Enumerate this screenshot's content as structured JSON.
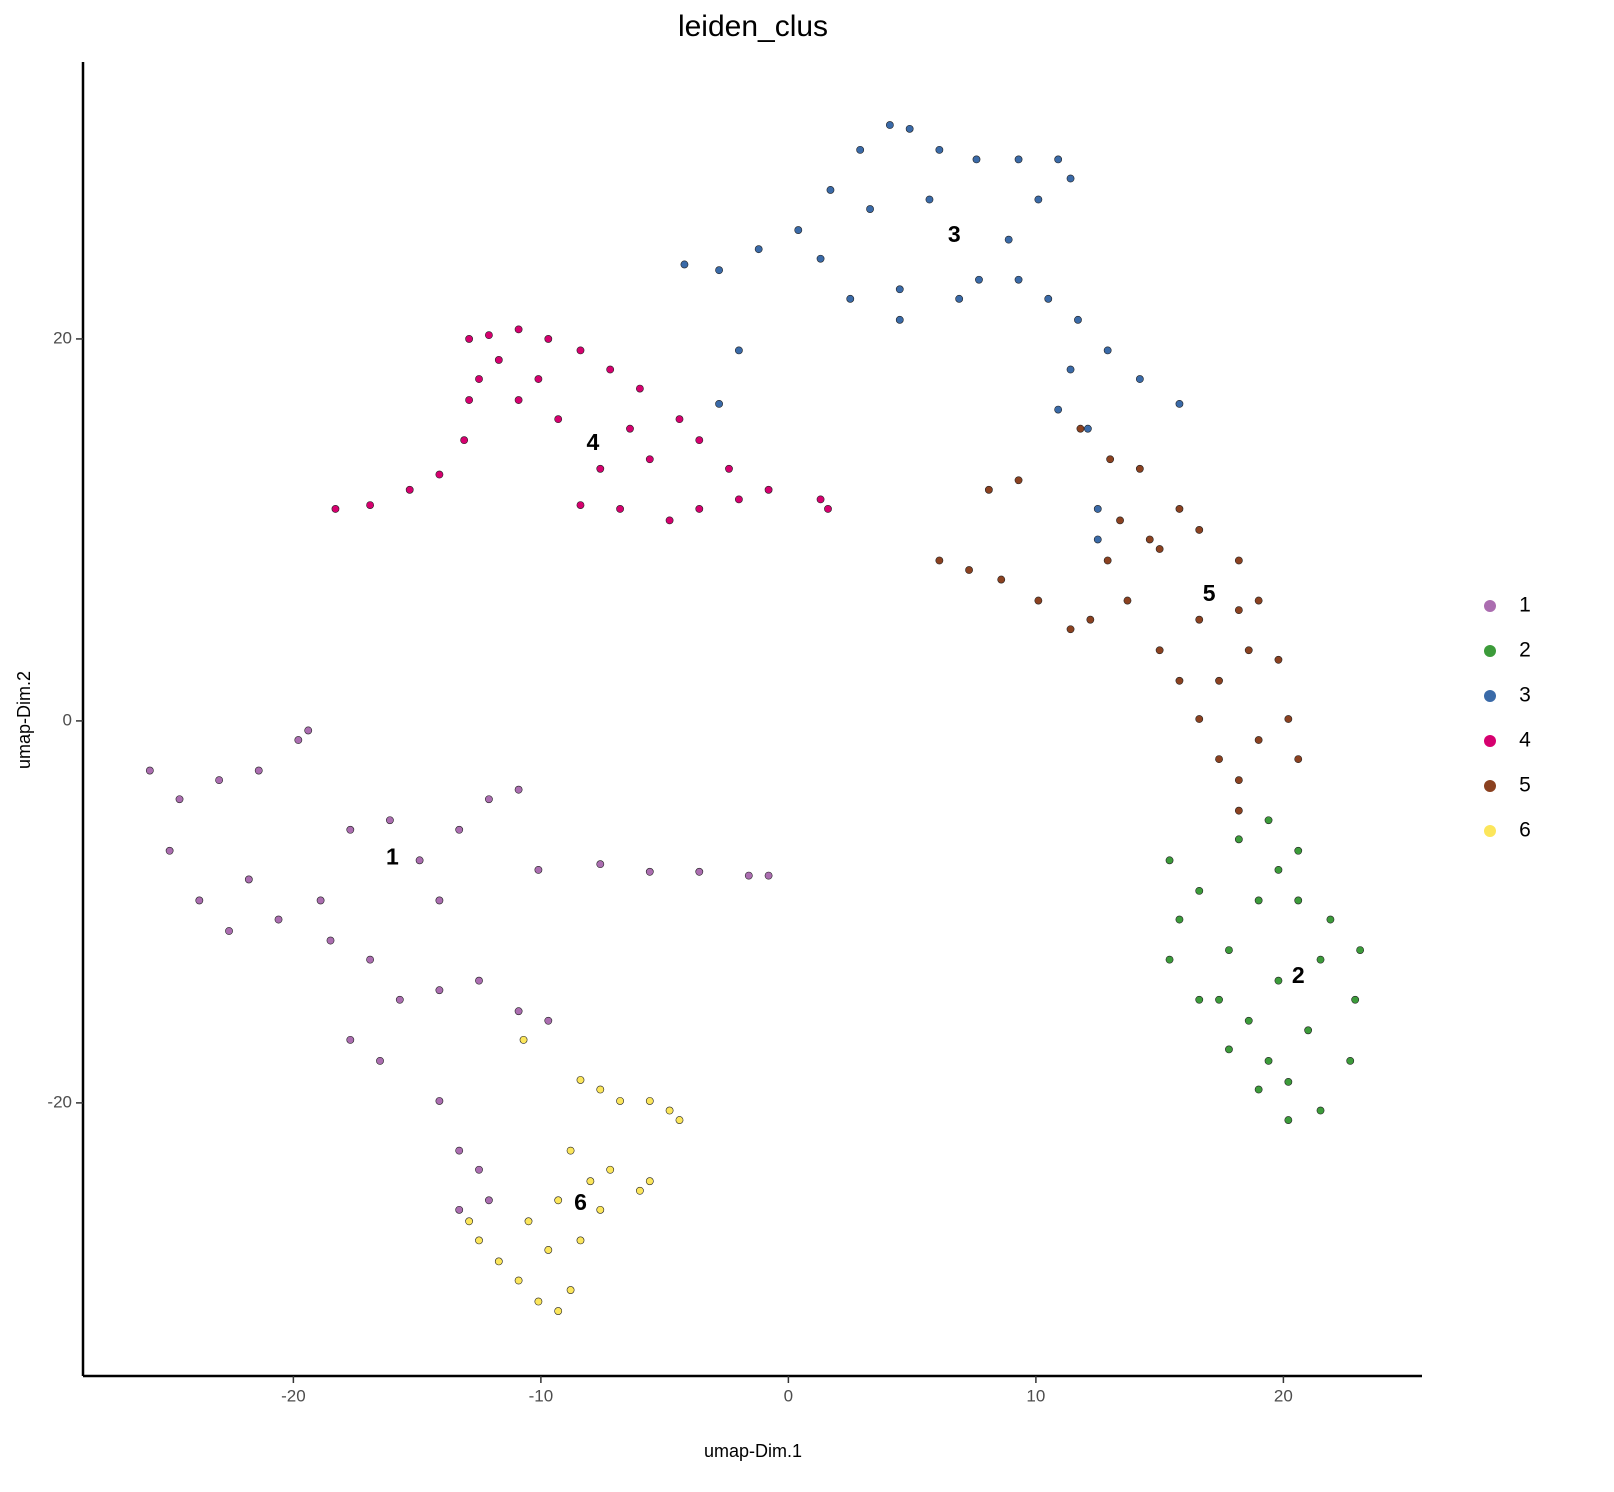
{
  "chart_data": {
    "type": "scatter",
    "title": "leiden_clus",
    "x_label": "umap-Dim.1",
    "y_label": "umap-Dim.2",
    "xlim": [
      -28.5,
      25.6
    ],
    "ylim": [
      -34.3,
      34.5
    ],
    "xticks": [
      -20,
      -10,
      0,
      10,
      20
    ],
    "yticks": [
      -20,
      0,
      20
    ],
    "grid": false,
    "legend": "right",
    "series": [
      {
        "name": "1",
        "color": "#ab6db0",
        "x": [
          -25.8,
          -24.6,
          -23.0,
          -21.4,
          -19.8,
          -19.4,
          -25.0,
          -23.8,
          -22.6,
          -20.6,
          -18.9,
          -17.7,
          -16.1,
          -14.9,
          -14.1,
          -13.3,
          -12.1,
          -10.9,
          -10.1,
          -7.6,
          -5.6,
          -3.6,
          -1.6,
          -0.8,
          -16.9,
          -15.7,
          -17.7,
          -16.5,
          -14.1,
          -12.5,
          -10.9,
          -9.7,
          -14.1,
          -13.3,
          -12.5,
          -12.1,
          -13.3,
          -21.8,
          -18.5
        ],
        "y": [
          -2.6,
          -4.1,
          -3.1,
          -2.6,
          -1.0,
          -0.5,
          -6.8,
          -9.4,
          -11.0,
          -10.4,
          -9.4,
          -5.7,
          -5.2,
          -7.3,
          -9.4,
          -5.7,
          -4.1,
          -3.6,
          -7.8,
          -7.5,
          -7.9,
          -7.9,
          -8.1,
          -8.1,
          -12.5,
          -14.6,
          -16.7,
          -17.8,
          -14.1,
          -13.6,
          -15.2,
          -15.7,
          -19.9,
          -22.5,
          -23.5,
          -25.1,
          -25.6,
          -8.3,
          -11.5
        ]
      },
      {
        "name": "2",
        "color": "#3c9b3a",
        "x": [
          19.4,
          20.6,
          18.2,
          15.4,
          15.8,
          15.4,
          16.6,
          17.8,
          19.0,
          20.2,
          21.5,
          22.7,
          22.9,
          23.1,
          21.9,
          20.6,
          19.0,
          17.8,
          19.8,
          21.0,
          19.4,
          18.6,
          17.4,
          21.5,
          19.8,
          16.6,
          20.2
        ],
        "y": [
          -5.2,
          -6.8,
          -6.2,
          -7.3,
          -10.4,
          -12.5,
          -14.6,
          -17.2,
          -19.3,
          -20.9,
          -20.4,
          -17.8,
          -14.6,
          -12.0,
          -10.4,
          -9.4,
          -9.4,
          -12.0,
          -13.6,
          -16.2,
          -17.8,
          -15.7,
          -14.6,
          -12.5,
          -7.8,
          -8.9,
          -18.9
        ]
      },
      {
        "name": "3",
        "color": "#3a6aa8",
        "x": [
          -4.2,
          -2.8,
          -1.2,
          0.4,
          1.7,
          2.9,
          4.1,
          4.9,
          6.1,
          7.6,
          9.3,
          10.9,
          11.4,
          10.1,
          8.9,
          9.3,
          10.5,
          11.7,
          12.9,
          14.2,
          15.8,
          11.4,
          10.9,
          12.1,
          6.9,
          4.5,
          2.5,
          4.5,
          1.3,
          3.3,
          5.7,
          7.7,
          12.5,
          12.5,
          -2.0,
          -2.8
        ],
        "y": [
          23.9,
          23.6,
          24.7,
          25.7,
          27.8,
          29.9,
          31.2,
          31.0,
          29.9,
          29.4,
          29.4,
          29.4,
          28.4,
          27.3,
          25.2,
          23.1,
          22.1,
          21.0,
          19.4,
          17.9,
          16.6,
          18.4,
          16.3,
          15.3,
          22.1,
          22.6,
          22.1,
          21.0,
          24.2,
          26.8,
          27.3,
          23.1,
          11.1,
          9.5,
          19.4,
          16.6
        ]
      },
      {
        "name": "4",
        "color": "#d6006f",
        "x": [
          -18.3,
          -16.9,
          -15.3,
          -14.1,
          -13.1,
          -12.9,
          -12.9,
          -12.1,
          -10.9,
          -9.7,
          -8.4,
          -7.2,
          -6.0,
          -4.4,
          -3.6,
          -2.4,
          -0.8,
          1.3,
          -3.6,
          -4.8,
          -6.8,
          -8.4,
          -7.6,
          -6.4,
          -9.3,
          -10.9,
          -12.5,
          -11.7,
          -10.1,
          -5.6,
          -2.0,
          1.6
        ],
        "y": [
          11.1,
          11.3,
          12.1,
          12.9,
          14.7,
          16.8,
          20.0,
          20.2,
          20.5,
          20.0,
          19.4,
          18.4,
          17.4,
          15.8,
          14.7,
          13.2,
          12.1,
          11.6,
          11.1,
          10.5,
          11.1,
          11.3,
          13.2,
          15.3,
          15.8,
          16.8,
          17.9,
          18.9,
          17.9,
          13.7,
          11.6,
          11.1
        ]
      },
      {
        "name": "5",
        "color": "#8b4120",
        "x": [
          6.1,
          7.3,
          8.6,
          10.1,
          11.4,
          12.2,
          8.1,
          9.3,
          11.8,
          13.0,
          14.2,
          15.8,
          16.6,
          18.2,
          19.0,
          19.8,
          20.2,
          20.6,
          19.0,
          18.2,
          18.2,
          17.4,
          16.6,
          15.8,
          15.0,
          13.7,
          12.9,
          13.4,
          15.0,
          16.6,
          17.4,
          18.6,
          14.6,
          18.2
        ],
        "y": [
          8.4,
          7.9,
          7.4,
          6.3,
          4.8,
          5.3,
          12.1,
          12.6,
          15.3,
          13.7,
          13.2,
          11.1,
          10.0,
          8.4,
          6.3,
          3.2,
          0.1,
          -2.0,
          -1.0,
          -3.1,
          -4.7,
          -2.0,
          0.1,
          2.1,
          3.7,
          6.3,
          8.4,
          10.5,
          9.0,
          5.3,
          2.1,
          3.7,
          9.5,
          5.8
        ]
      },
      {
        "name": "6",
        "color": "#fce65b",
        "x": [
          -12.9,
          -12.5,
          -11.7,
          -10.9,
          -10.1,
          -9.3,
          -8.8,
          -9.7,
          -9.3,
          -8.0,
          -7.2,
          -6.0,
          -5.6,
          -7.6,
          -6.8,
          -5.6,
          -4.8,
          -4.4,
          -8.4,
          -7.6,
          -8.8,
          -10.5,
          -8.4,
          -10.7
        ],
        "y": [
          -26.2,
          -27.2,
          -28.3,
          -29.3,
          -30.4,
          -30.9,
          -29.8,
          -27.7,
          -25.1,
          -24.1,
          -23.5,
          -24.6,
          -24.1,
          -25.6,
          -19.9,
          -19.9,
          -20.4,
          -20.9,
          -18.8,
          -19.3,
          -22.5,
          -26.2,
          -27.2,
          -16.7
        ]
      }
    ],
    "annotations": [
      {
        "text": "1",
        "x": -16.0,
        "y": -7.2
      },
      {
        "text": "2",
        "x": 20.6,
        "y": -13.4
      },
      {
        "text": "3",
        "x": 6.7,
        "y": 25.4
      },
      {
        "text": "4",
        "x": -7.9,
        "y": 14.5
      },
      {
        "text": "5",
        "x": 17.0,
        "y": 6.6
      },
      {
        "text": "6",
        "x": -8.4,
        "y": -25.3
      }
    ]
  }
}
